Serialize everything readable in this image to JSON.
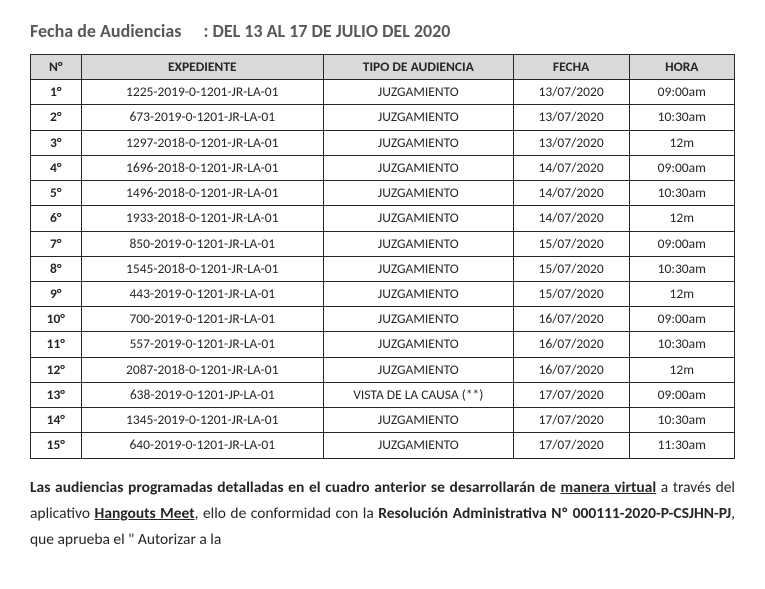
{
  "header": {
    "label": "Fecha de Audiencias",
    "value": ": DEL 13 AL 17 DE JULIO DEL 2020"
  },
  "table": {
    "columns": [
      "N°",
      "EXPEDIENTE",
      "TIPO DE AUDIENCIA",
      "FECHA",
      "HORA"
    ],
    "rows": [
      [
        "1°",
        "1225-2019-0-1201-JR-LA-01",
        "JUZGAMIENTO",
        "13/07/2020",
        "09:00am"
      ],
      [
        "2°",
        "673-2019-0-1201-JR-LA-01",
        "JUZGAMIENTO",
        "13/07/2020",
        "10:30am"
      ],
      [
        "3°",
        "1297-2018-0-1201-JR-LA-01",
        "JUZGAMIENTO",
        "13/07/2020",
        "12m"
      ],
      [
        "4°",
        "1696-2018-0-1201-JR-LA-01",
        "JUZGAMIENTO",
        "14/07/2020",
        "09:00am"
      ],
      [
        "5°",
        "1496-2018-0-1201-JR-LA-01",
        "JUZGAMIENTO",
        "14/07/2020",
        "10:30am"
      ],
      [
        "6°",
        "1933-2018-0-1201-JR-LA-01",
        "JUZGAMIENTO",
        "14/07/2020",
        "12m"
      ],
      [
        "7°",
        "850-2019-0-1201-JR-LA-01",
        "JUZGAMIENTO",
        "15/07/2020",
        "09:00am"
      ],
      [
        "8°",
        "1545-2018-0-1201-JR-LA-01",
        "JUZGAMIENTO",
        "15/07/2020",
        "10:30am"
      ],
      [
        "9°",
        "443-2019-0-1201-JR-LA-01",
        "JUZGAMIENTO",
        "15/07/2020",
        "12m"
      ],
      [
        "10°",
        "700-2019-0-1201-JR-LA-01",
        "JUZGAMIENTO",
        "16/07/2020",
        "09:00am"
      ],
      [
        "11°",
        "557-2019-0-1201-JR-LA-01",
        "JUZGAMIENTO",
        "16/07/2020",
        "10:30am"
      ],
      [
        "12°",
        "2087-2018-0-1201-JR-LA-01",
        "JUZGAMIENTO",
        "16/07/2020",
        "12m"
      ],
      [
        "13°",
        "638-2019-0-1201-JP-LA-01",
        "VISTA DE LA CAUSA (**)",
        "17/07/2020",
        "09:00am"
      ],
      [
        "14°",
        "1345-2019-0-1201-JR-LA-01",
        "JUZGAMIENTO",
        "17/07/2020",
        "10:30am"
      ],
      [
        "15°",
        "640-2019-0-1201-JR-LA-01",
        "JUZGAMIENTO",
        "17/07/2020",
        "11:30am"
      ]
    ]
  },
  "paragraph": {
    "seg1": "Las audiencias programadas detalladas en el cuadro anterior se desarrollarán de ",
    "seg2": "manera virtual",
    "seg3": " a través del aplicativo ",
    "seg4": "Hangouts Meet",
    "seg5": ", ello de conformidad con la ",
    "seg6": "Resolución Administrativa Nº 000111-2020-P-CSJHN-PJ",
    "seg7": ", que aprueba el \" Autorizar a la"
  }
}
